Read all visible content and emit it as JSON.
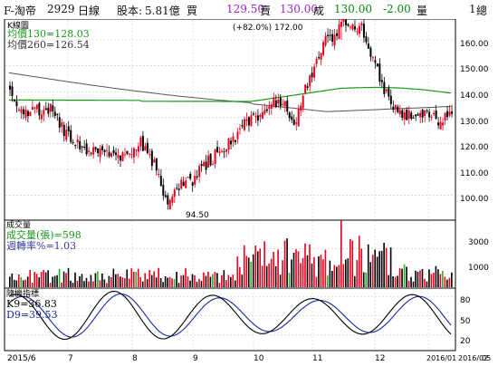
{
  "header": {
    "name": "F-淘帝",
    "code": "2929",
    "period": "日線",
    "capital_label": "股本:",
    "capital_value": "5.81億",
    "buy_label": "買",
    "buy_price": "129.50",
    "sell_label": "賣",
    "sell_price": "130.00",
    "deal_label": "成",
    "deal_price": "130.00",
    "change": "-2.00",
    "volume_label": "量",
    "volume_value": "1",
    "total_label": "總"
  },
  "price_panel": {
    "title": "K線圖",
    "ma130": "均價130=128.03",
    "ma260": "均價260=126.54",
    "high_note": "(+82.0%) 172.00",
    "low_note": "94.50",
    "y_ticks": [
      "160.00",
      "150.00",
      "140.00",
      "130.00",
      "120.00",
      "110.00",
      "100.00"
    ]
  },
  "volume_panel": {
    "title": "成交量",
    "volume_line": "成交量(張)=598",
    "turnover_line": "週轉率%=1.03",
    "y_ticks": [
      "3000",
      "1000"
    ]
  },
  "kd_panel": {
    "title": "隨機指標",
    "k_line": "K9=36.83",
    "d_line": "D9=39.53",
    "y_ticks": [
      "80",
      "50",
      "20"
    ]
  },
  "x_labels": [
    "2015/6",
    "7",
    "8",
    "9",
    "10",
    "11",
    "12",
    "2016/01",
    "2016/02",
    "05"
  ],
  "colors": {
    "up": "#e8001c",
    "down": "#000000",
    "ma130": "#1a9a1a",
    "ma260": "#555555",
    "k_line": "#000000",
    "d_line": "#1a2a9a",
    "volume_green": "#2ab02a"
  },
  "chart_data": [
    {
      "type": "candlestick",
      "title": "K線圖",
      "x_labels": [
        "2015/6",
        "7",
        "8",
        "9",
        "10",
        "11",
        "12",
        "2016/01",
        "2016/02",
        "05"
      ],
      "y_ticks": [
        160,
        150,
        140,
        130,
        120,
        110,
        100
      ],
      "annotations": [
        "(+82.0%) 172.00",
        "94.50"
      ],
      "ohlc_control": [
        [
          0,
          141.5
        ],
        [
          5,
          131.5
        ],
        [
          10,
          133.5
        ],
        [
          18,
          133.0
        ],
        [
          25,
          123.0
        ],
        [
          33,
          118.0
        ],
        [
          39,
          117.0
        ],
        [
          45,
          114.5
        ],
        [
          52,
          116.5
        ],
        [
          58,
          120.0
        ],
        [
          64,
          112.0
        ],
        [
          70,
          94.5
        ],
        [
          75,
          104.0
        ],
        [
          81,
          106.0
        ],
        [
          87,
          112.0
        ],
        [
          93,
          117.0
        ],
        [
          99,
          122.0
        ],
        [
          104,
          127.0
        ],
        [
          110,
          130.0
        ],
        [
          116,
          135.5
        ],
        [
          121,
          137.0
        ],
        [
          126,
          127.0
        ],
        [
          131,
          142.0
        ],
        [
          135,
          148.0
        ],
        [
          140,
          163.0
        ],
        [
          143,
          158.0
        ],
        [
          147,
          168.0
        ],
        [
          151,
          164.0
        ],
        [
          156,
          165.0
        ],
        [
          160,
          155.0
        ],
        [
          164,
          145.0
        ],
        [
          168,
          137.0
        ],
        [
          172,
          133.0
        ],
        [
          175,
          131.0
        ],
        [
          181,
          131.5
        ],
        [
          189,
          129.0
        ],
        [
          194,
          130.0
        ]
      ],
      "series": [
        {
          "name": "均價130",
          "last": 128.03
        },
        {
          "name": "均價260",
          "last": 126.54
        }
      ]
    },
    {
      "type": "bar",
      "title": "成交量",
      "y_ticks": [
        3000,
        1000
      ],
      "series": [
        {
          "name": "成交量(張)",
          "last": 598
        }
      ]
    },
    {
      "type": "line",
      "title": "隨機指標",
      "y_ticks": [
        80,
        50,
        20
      ],
      "series": [
        {
          "name": "K9",
          "last": 36.83
        },
        {
          "name": "D9",
          "last": 39.53
        }
      ]
    }
  ]
}
